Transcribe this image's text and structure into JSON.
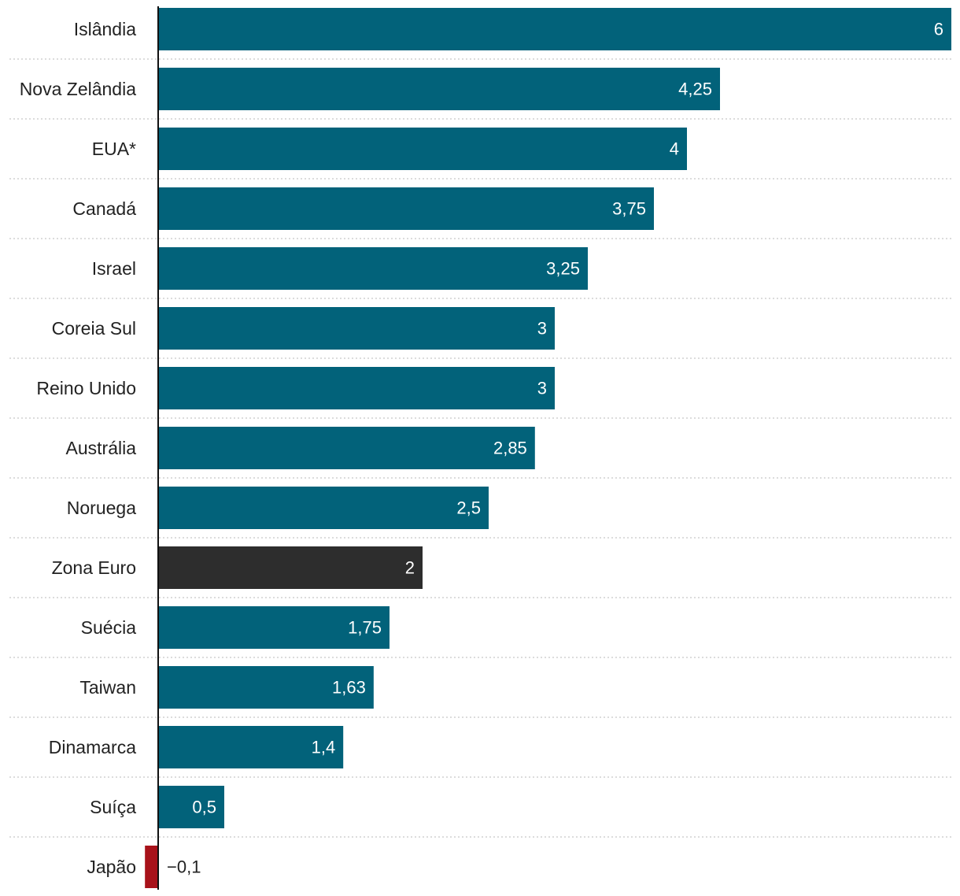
{
  "chart_data": {
    "type": "bar",
    "orientation": "horizontal",
    "title": "",
    "xlabel": "",
    "ylabel": "",
    "xlim": [
      -0.4,
      6
    ],
    "grid": false,
    "legend": "none",
    "categories": [
      "Islândia",
      "Nova Zelândia",
      "EUA*",
      "Canadá",
      "Israel",
      "Coreia Sul",
      "Reino Unido",
      "Austrália",
      "Noruega",
      "Zona Euro",
      "Suécia",
      "Taiwan",
      "Dinamarca",
      "Suíça",
      "Japão"
    ],
    "values": [
      6,
      4.25,
      4,
      3.75,
      3.25,
      3,
      3,
      2.85,
      2.5,
      2,
      1.75,
      1.63,
      1.4,
      0.5,
      -0.1
    ],
    "value_labels": [
      "6",
      "4,25",
      "4",
      "3,75",
      "3,25",
      "3",
      "3",
      "2,85",
      "2,5",
      "2",
      "1,75",
      "1,63",
      "1,4",
      "0,5",
      "−0,1"
    ],
    "highlight": [
      "default",
      "default",
      "default",
      "default",
      "default",
      "default",
      "default",
      "default",
      "default",
      "euro",
      "default",
      "default",
      "default",
      "default",
      "negative"
    ],
    "colors": {
      "default": "#02627a",
      "euro": "#2d2d2d",
      "negative": "#a8121a",
      "inside_label": "#ffffff",
      "outside_label": "#222222",
      "axis": "#111111",
      "separator": "#c8c8c8"
    }
  }
}
